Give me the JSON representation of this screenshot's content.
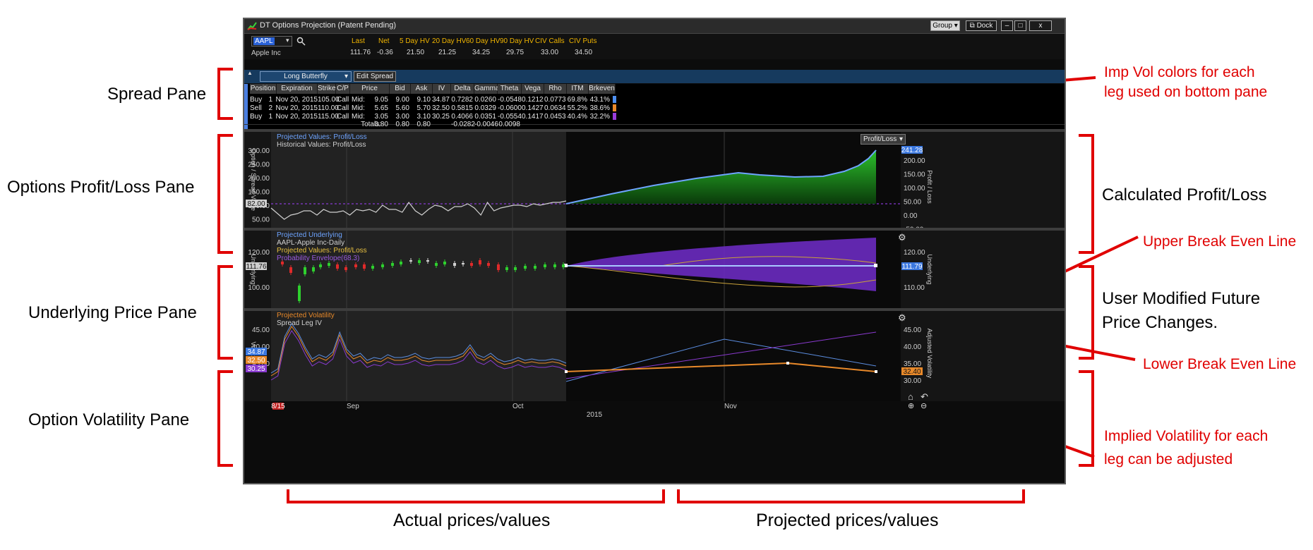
{
  "annotations": {
    "pane_labels": [
      "Spread Pane",
      "Options Profit/Loss Pane",
      "Underlying Price Pane",
      "Option Volatility Pane"
    ],
    "right_labels": {
      "calc_pl": "Calculated Profit/Loss",
      "user_mod_1": "User Modified Future",
      "user_mod_2": "Price Changes."
    },
    "red_notes": {
      "imp_vol_1": "Imp Vol colors for each",
      "imp_vol_2": "leg used on bottom pane",
      "upper_be": "Upper Break Even Line",
      "lower_be": "Lower Break Even Line",
      "iv_adj_1": "Implied Volatility for each",
      "iv_adj_2": "leg can be adjusted"
    },
    "bottom": {
      "actual": "Actual prices/values",
      "projected": "Projected prices/values"
    },
    "colors": {
      "red": "#e00000",
      "bracket": "#e00000"
    }
  },
  "app": {
    "title": "DT Options Projection (Patent Pending)",
    "buttons": {
      "group": "Group",
      "dock": "Dock",
      "min": "–",
      "max": "□",
      "close": "x"
    },
    "symbol": "AAPL",
    "company": "Apple Inc",
    "quote_headers": [
      "Last",
      "Net",
      "5 Day HV",
      "20 Day HV",
      "60 Day HV",
      "90 Day HV",
      "CIV Calls",
      "CIV Puts"
    ],
    "quote_values": [
      "111.76",
      "-0.36",
      "21.50",
      "21.25",
      "34.25",
      "29.75",
      "33.00",
      "34.50"
    ],
    "strategy": "Long Butterfly",
    "edit_spread": "Edit Spread",
    "spread_columns": [
      "Position",
      "Expiration",
      "Strike",
      "C/P",
      "Price",
      "Bid",
      "Ask",
      "IV",
      "Delta",
      "Gamma",
      "Theta",
      "Vega",
      "Rho",
      "ITM",
      "Brkeven"
    ],
    "spread_rows": [
      {
        "side": "Buy",
        "qty": "1",
        "exp": "Nov 20, 2015",
        "strike": "105.00",
        "cp": "Call",
        "pt": "Mid:",
        "price": "9.05",
        "bid": "9.00",
        "ask": "9.10",
        "iv": "34.87",
        "delta": "0.7282",
        "gamma": "0.0260",
        "theta": "-0.0548",
        "vega": "0.1212",
        "rho": "0.0773",
        "itm": "69.8%",
        "brk": "43.1%",
        "color": "#4d8ff0"
      },
      {
        "side": "Sell",
        "qty": "2",
        "exp": "Nov 20, 2015",
        "strike": "110.00",
        "cp": "Call",
        "pt": "Mid:",
        "price": "5.65",
        "bid": "5.60",
        "ask": "5.70",
        "iv": "32.50",
        "delta": "0.5815",
        "gamma": "0.0329",
        "theta": "-0.0600",
        "vega": "0.1427",
        "rho": "0.0634",
        "itm": "55.2%",
        "brk": "38.6%",
        "color": "#e8892a"
      },
      {
        "side": "Buy",
        "qty": "1",
        "exp": "Nov 20, 2015",
        "strike": "115.00",
        "cp": "Call",
        "pt": "Mid:",
        "price": "3.05",
        "bid": "3.00",
        "ask": "3.10",
        "iv": "30.25",
        "delta": "0.4066",
        "gamma": "0.0351",
        "theta": "-0.0554",
        "vega": "0.1417",
        "rho": "0.0453",
        "itm": "40.4%",
        "brk": "32.2%",
        "color": "#9a3cd8"
      }
    ],
    "totals": {
      "label": "Totals:",
      "price": "0.80",
      "bid": "0.80",
      "ask": "0.80",
      "delta": "-0.0282",
      "gamma": "-0.0046",
      "theta": "0.0098"
    },
    "pl_pane": {
      "legend1": "Projected Values: Profit/Loss",
      "legend2": "Historical Values: Profit/Loss",
      "dropdown": "Profit/Loss",
      "left_axis_title": "Option / Spread Value",
      "right_axis_title": "Profit / Loss",
      "left_ticks": [
        "300.00",
        "250.00",
        "200.00",
        "150.00",
        "100.00",
        "50.00"
      ],
      "right_ticks": [
        "200.00",
        "150.00",
        "100.00",
        "50.00",
        "0.00",
        "-50.00"
      ],
      "left_tag": "82.00",
      "right_tag": "241.28"
    },
    "und_pane": {
      "legend1": "Projected Underlying",
      "legend2": "AAPL-Apple Inc-Daily",
      "legend3": "Projected Values: Profit/Loss",
      "legend4": "Probability Envelope(68.3)",
      "axis_title": "Underlying",
      "ticks": [
        "120.00",
        "100.00"
      ],
      "right_ticks": [
        "120.00",
        "110.00"
      ],
      "left_tag": "111.76",
      "right_tag": "111.79"
    },
    "vol_pane": {
      "legend1": "Projected Volatility",
      "legend2": "Spread Leg IV",
      "left_axis_title": "Volatility",
      "right_axis_title": "Adjusted Volatility",
      "ticks": [
        "45.00",
        "40.00",
        "35.00",
        "30.00"
      ],
      "tags_left": [
        "34.87",
        "32.50",
        "30.25"
      ],
      "tag_right": "32.40",
      "x_labels": [
        "Sep",
        "Oct",
        "Nov"
      ],
      "year": "2015",
      "date_tag": "8/15"
    },
    "colors": {
      "proj_blue": "#5b9cff",
      "hist_white": "#d0d0d0",
      "profit_green": "#1f9d1f",
      "envelope": "#7a2fd0",
      "orange": "#e8892a",
      "purple": "#8a3ad0",
      "breakeven": "#a040ff"
    }
  }
}
